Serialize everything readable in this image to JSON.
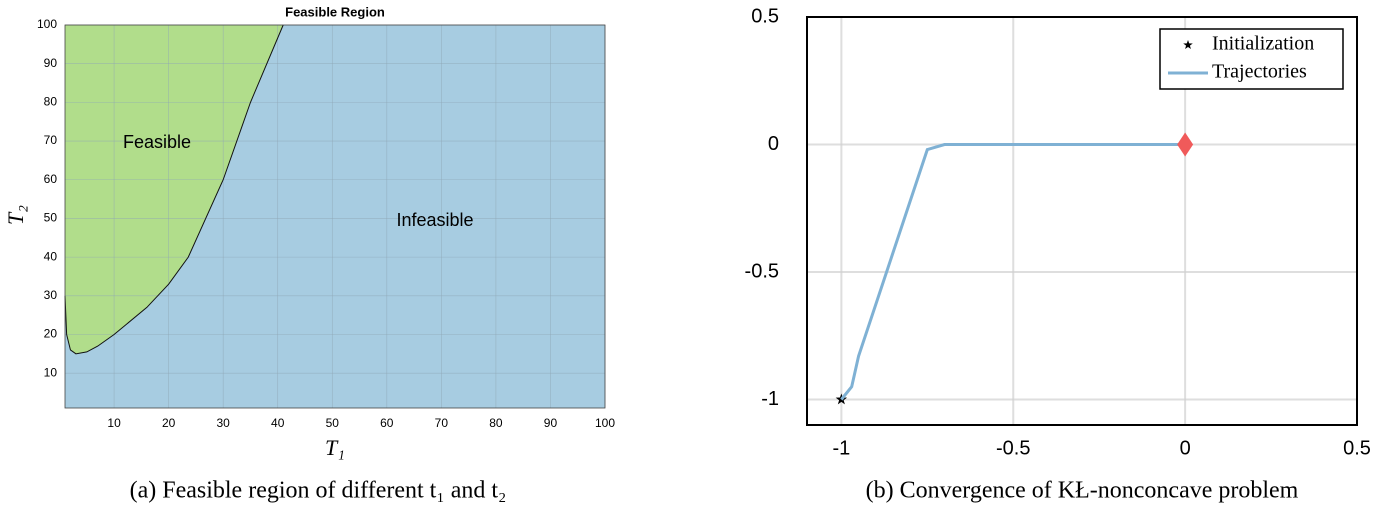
{
  "chart_data": [
    {
      "type": "area",
      "title": "Feasible Region",
      "x_label": "T₁",
      "y_label": "T₂",
      "x": [
        1,
        1.3,
        2,
        3,
        5,
        7,
        10,
        16,
        20,
        23.6,
        30,
        35,
        41
      ],
      "values": [
        30,
        20,
        16,
        15,
        15.5,
        17,
        20,
        27,
        33,
        40,
        60,
        80,
        100
      ],
      "regions": [
        {
          "name": "Feasible",
          "color": "#b1dd8b"
        },
        {
          "name": "Infeasible",
          "color": "#a7cce1"
        }
      ],
      "xlim": [
        1,
        100
      ],
      "ylim": [
        1,
        100
      ],
      "xticks": [
        10,
        20,
        30,
        40,
        50,
        60,
        70,
        80,
        90,
        100
      ],
      "yticks": [
        10,
        20,
        30,
        40,
        50,
        60,
        70,
        80,
        90,
        100
      ],
      "grid": true
    },
    {
      "type": "line",
      "legend": "upper right",
      "grid": true,
      "series": [
        {
          "name": "Initialization",
          "color": "#000000",
          "x": [
            -1
          ],
          "values": [
            -1
          ]
        },
        {
          "name": "Trajectories",
          "color": "#7fb1d4",
          "x": [
            -1,
            -0.97,
            -0.95,
            -0.75,
            -0.7,
            0
          ],
          "values": [
            -1,
            -0.95,
            -0.83,
            -0.02,
            0,
            0
          ]
        }
      ],
      "points": [
        {
          "x": 0,
          "y": 0,
          "color": "#f05a5a"
        }
      ],
      "xlim": [
        -1.1,
        0.5
      ],
      "ylim": [
        -1.1,
        0.5
      ],
      "xticks": [
        -1,
        -0.5,
        0,
        0.5
      ],
      "yticks": [
        -1,
        -0.5,
        0,
        0.5
      ]
    }
  ],
  "captions": [
    "(a) Feasible region of different t₁ and t₂",
    "(b) Convergence of KŁ-nonconcave problem"
  ]
}
